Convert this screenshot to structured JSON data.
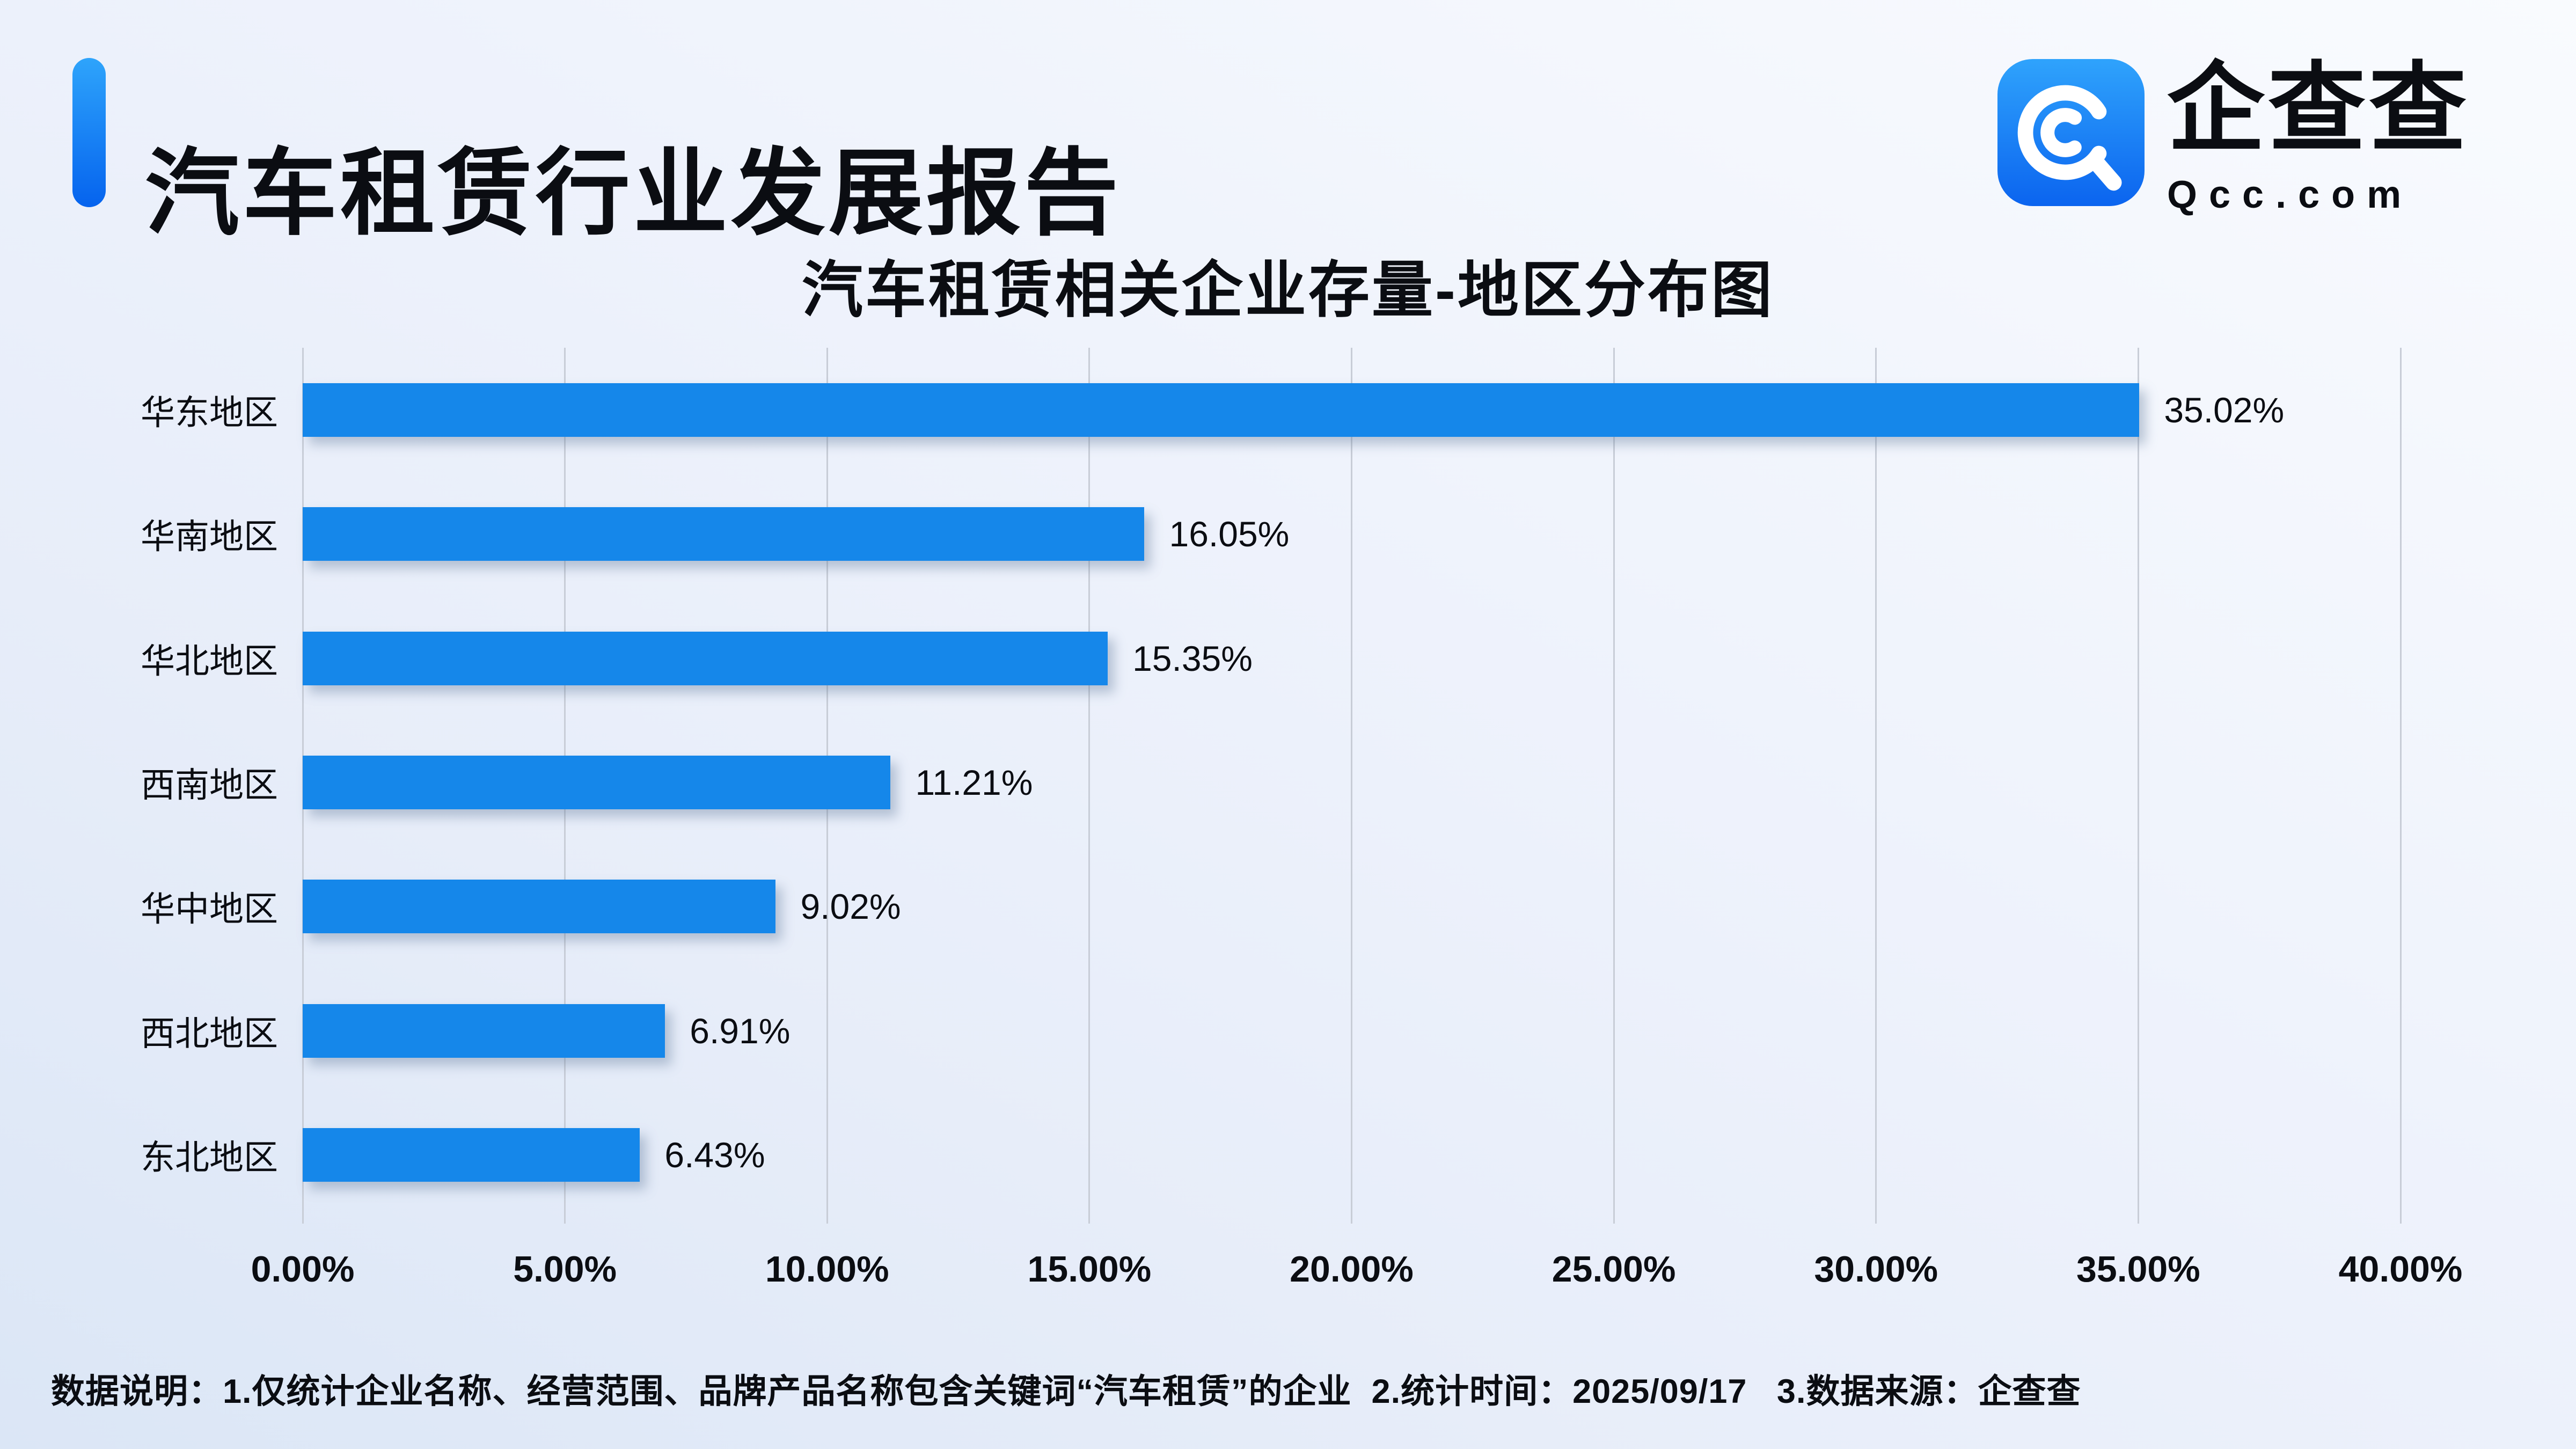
{
  "page": {
    "title": "汽车租赁行业发展报告",
    "note": "数据说明：1.仅统计企业名称、经营范围、品牌产品名称包含关键词“汽车租赁”的企业  2.统计时间：2025/09/17   3.数据来源：企查查"
  },
  "logo": {
    "name": "企查查",
    "domain": "Qcc.com"
  },
  "colors": {
    "bar": "#1587ea",
    "accent_top": "#2ea4fb",
    "accent_bottom": "#0563ee",
    "logo_top": "#2fa3fc",
    "logo_bottom": "#0b64ef",
    "gridline": "#c8cdd7",
    "background_dark": "#dbe6f6",
    "background_light": "#f9fbfe"
  },
  "chart_data": {
    "type": "bar",
    "orientation": "horizontal",
    "title": "汽车租赁相关企业存量-地区分布图",
    "categories": [
      "华东地区",
      "华南地区",
      "华北地区",
      "西南地区",
      "华中地区",
      "西北地区",
      "东北地区"
    ],
    "values": [
      35.02,
      16.05,
      15.35,
      11.21,
      9.02,
      6.91,
      6.43
    ],
    "labels": [
      "35.02%",
      "16.05%",
      "15.35%",
      "11.21%",
      "9.02%",
      "6.91%",
      "6.43%"
    ],
    "x_ticks": [
      "0.00%",
      "5.00%",
      "10.00%",
      "15.00%",
      "20.00%",
      "25.00%",
      "30.00%",
      "35.00%",
      "40.00%"
    ],
    "xlabel": "",
    "ylabel": "",
    "xlim": [
      0,
      40
    ],
    "grid": true,
    "legend": "none",
    "value_labels_position": "right-of-bar"
  }
}
